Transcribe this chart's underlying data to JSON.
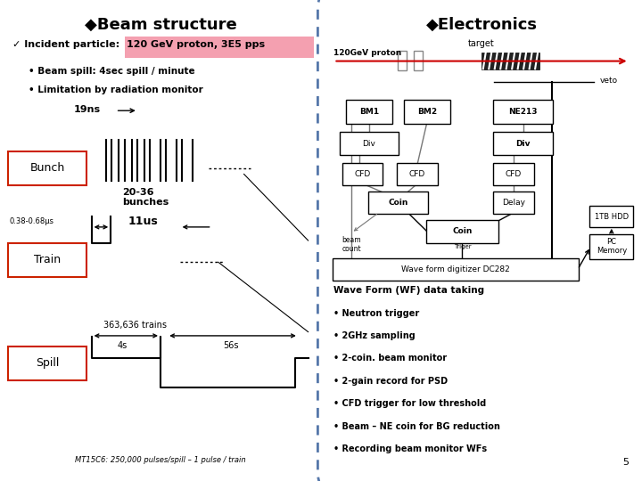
{
  "bg_color": "#ffffff",
  "border_color": "#5b7faa",
  "left_panel": {
    "title": "Beam structure",
    "bullet1": "Beam spill: 4sec spill / minute",
    "bullet2": "Limitation by radiation monitor",
    "ns_label": "19ns",
    "bunch_label": "Bunch",
    "bunches_label": "20-36\nbunches",
    "train_label": "Train",
    "spill_label": "Spill",
    "us_label": "11us",
    "us_sub": "0.38-0.68μs",
    "trains_text": "363,636 trains",
    "s4_text": "4s",
    "s56_text": "56s",
    "footer": "MT15C6: 250,000 pulses/spill – 1 pulse / train"
  },
  "right_panel": {
    "title": "Electronics",
    "subtitle": "target",
    "proton_label": "120GeV proton",
    "veto_label": "veto",
    "bm1": "BM1",
    "bm2": "BM2",
    "ne213": "NE213",
    "div1": "Div",
    "div2": "Div",
    "cfd1": "CFD",
    "cfd2": "CFD",
    "cfd3": "CFD",
    "coin1": "Coin",
    "delay": "Delay",
    "beam_count": "beam\ncount",
    "coin2": "Coin",
    "triger": "Triger",
    "wf_digitizer": "Wave form digitizer DC282",
    "hdd": "1TB HDD",
    "pc": "PC\nMemory",
    "wf_title": "Wave Form (WF) data taking",
    "wf_bullets": [
      "Neutron trigger",
      "2GHz sampling",
      "2-coin. beam monitor",
      "2-gain record for PSD",
      "CFD trigger for low threshold",
      "Beam – NE coin for BG reduction",
      "Recording beam monitor WFs"
    ],
    "page_num": "5"
  }
}
